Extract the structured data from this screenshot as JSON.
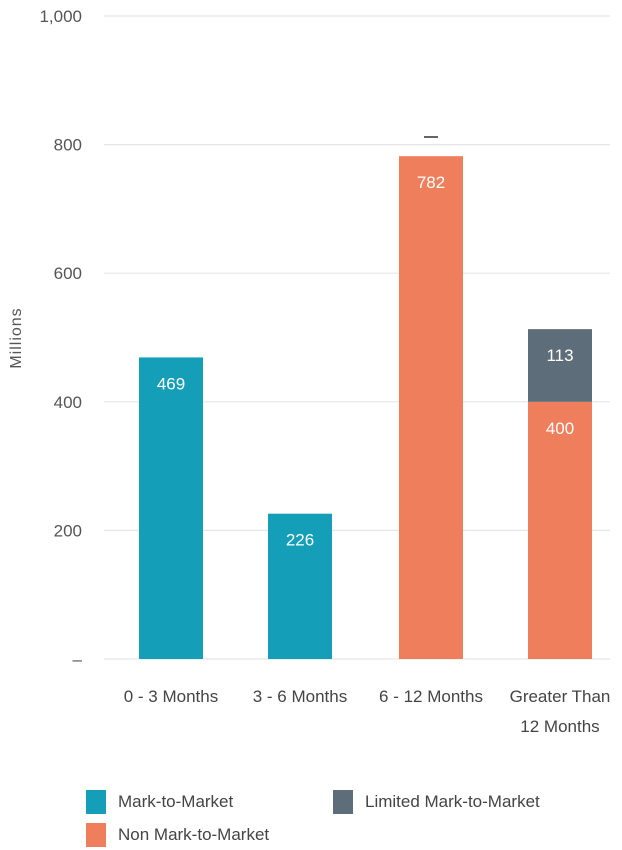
{
  "chart_data": {
    "type": "bar",
    "stacked": true,
    "categories": [
      "0 - 3 Months",
      "3 - 6 Months",
      "6 - 12 Months",
      "Greater Than 12 Months"
    ],
    "category_lines": [
      [
        "0 - 3 Months"
      ],
      [
        "3 - 6 Months"
      ],
      [
        "6 - 12 Months"
      ],
      [
        "Greater Than",
        "12 Months"
      ]
    ],
    "series": [
      {
        "name": "Mark-to-Market",
        "color": "#159eb8",
        "values": [
          469,
          226,
          0,
          0
        ]
      },
      {
        "name": "Non Mark-to-Market",
        "color": "#ef7f5c",
        "values": [
          0,
          0,
          782,
          400
        ]
      },
      {
        "name": "Limited Mark-to-Market",
        "color": "#5d6d79",
        "values": [
          0,
          0,
          0,
          113
        ]
      }
    ],
    "ylabel": "Millions",
    "ylim": [
      0,
      1000
    ],
    "yticks": [
      0,
      200,
      400,
      600,
      800,
      1000
    ],
    "ytick_labels": [
      "–",
      "200",
      "400",
      "600",
      "800",
      "1,000"
    ],
    "grid": true,
    "legend_position": "bottom"
  }
}
